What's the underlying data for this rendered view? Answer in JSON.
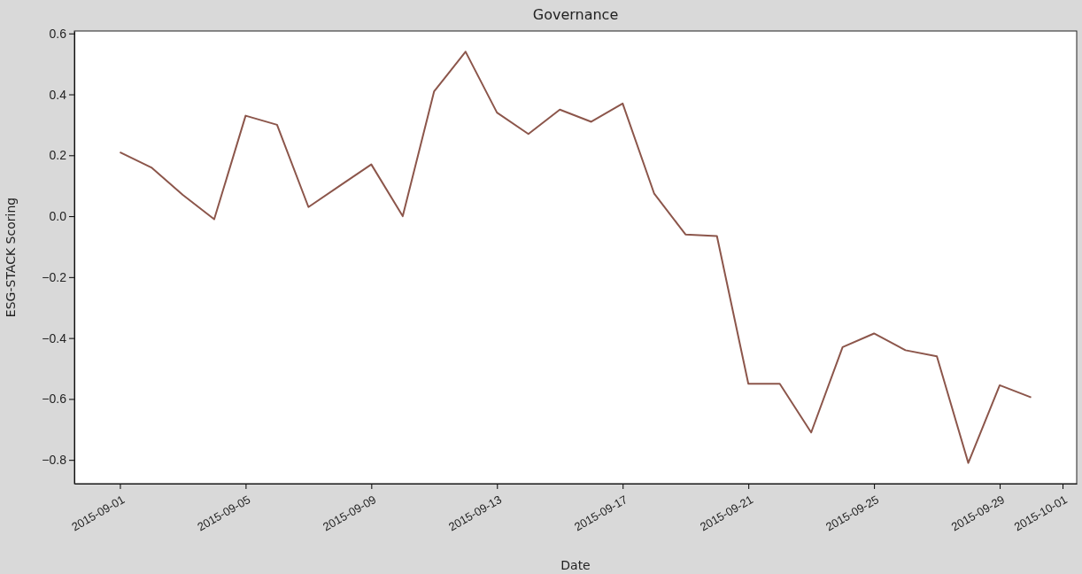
{
  "chart_data": {
    "type": "line",
    "title": "Governance",
    "xlabel": "Date",
    "ylabel": "ESG-STACK Scoring",
    "x": [
      "2015-09-01",
      "2015-09-02",
      "2015-09-03",
      "2015-09-04",
      "2015-09-05",
      "2015-09-06",
      "2015-09-07",
      "2015-09-08",
      "2015-09-09",
      "2015-09-10",
      "2015-09-11",
      "2015-09-12",
      "2015-09-13",
      "2015-09-14",
      "2015-09-15",
      "2015-09-16",
      "2015-09-17",
      "2015-09-18",
      "2015-09-19",
      "2015-09-20",
      "2015-09-21",
      "2015-09-22",
      "2015-09-23",
      "2015-09-24",
      "2015-09-25",
      "2015-09-26",
      "2015-09-27",
      "2015-09-28",
      "2015-09-29",
      "2015-09-30"
    ],
    "series": [
      {
        "color": "#8c564b",
        "values": [
          0.21,
          0.16,
          0.07,
          -0.01,
          0.33,
          0.3,
          0.03,
          0.1,
          0.17,
          0.0,
          0.41,
          0.54,
          0.34,
          0.27,
          0.35,
          0.31,
          0.37,
          0.075,
          -0.06,
          -0.065,
          -0.55,
          -0.55,
          -0.71,
          -0.43,
          -0.385,
          -0.44,
          -0.46,
          -0.81,
          -0.555,
          -0.595
        ]
      }
    ],
    "xlim": [
      "2015-08-30T13:12",
      "2015-10-01T10:48"
    ],
    "xticks": [
      "2015-09-01",
      "2015-09-05",
      "2015-09-09",
      "2015-09-13",
      "2015-09-17",
      "2015-09-21",
      "2015-09-25",
      "2015-09-29",
      "2015-10-01"
    ],
    "ylim": [
      -0.878,
      0.608
    ],
    "yticks": [
      {
        "value": -0.8,
        "label": "−0.8"
      },
      {
        "value": -0.6,
        "label": "−0.6"
      },
      {
        "value": -0.4,
        "label": "−0.4"
      },
      {
        "value": -0.2,
        "label": "−0.2"
      },
      {
        "value": 0,
        "label": "0.0"
      },
      {
        "value": 0.2,
        "label": "0.2"
      },
      {
        "value": 0.4,
        "label": "0.4"
      },
      {
        "value": 0.6,
        "label": "0.6"
      }
    ],
    "grid": false,
    "marker": "none",
    "line_style": "solid"
  }
}
